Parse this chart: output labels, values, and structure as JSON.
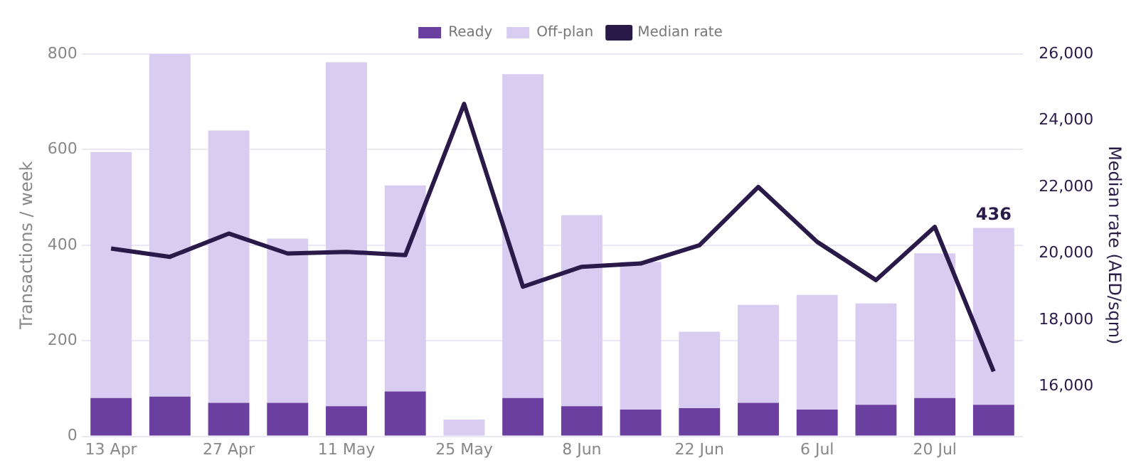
{
  "chart_data": {
    "type": "bar",
    "stacked": true,
    "categories": [
      "13 Apr",
      null,
      "27 Apr",
      null,
      "11 May",
      null,
      "25 May",
      null,
      "8 Jun",
      null,
      "22 Jun",
      null,
      "6 Jul",
      null,
      "20 Jul",
      null
    ],
    "series": [
      {
        "name": "Ready",
        "color": "#6b3fa0",
        "values": [
          80,
          83,
          70,
          70,
          63,
          94,
          0,
          80,
          63,
          56,
          59,
          70,
          56,
          66,
          80,
          66
        ]
      },
      {
        "name": "Off-plan",
        "color": "#d8ccf1",
        "values": [
          515,
          720,
          570,
          344,
          720,
          431,
          35,
          678,
          400,
          309,
          160,
          205,
          240,
          212,
          303,
          370
        ]
      },
      {
        "name": "Median rate",
        "type": "line",
        "axis": "y2",
        "color": "#2a1a4a",
        "values": [
          20150,
          19900,
          20600,
          20000,
          20050,
          19950,
          24500,
          19000,
          19600,
          19700,
          20250,
          22000,
          20350,
          19200,
          20800,
          16450
        ]
      }
    ],
    "totals": [
      null,
      null,
      null,
      null,
      null,
      null,
      null,
      null,
      null,
      null,
      null,
      null,
      null,
      null,
      null,
      "436"
    ],
    "ylabel": "Transactions / week",
    "y2label": "Median rate (AED/sqm)",
    "ylim": [
      0,
      800
    ],
    "yticks": [
      0,
      200,
      400,
      600,
      800
    ],
    "y2lim": [
      14500,
      26000
    ],
    "y2ticks": [
      {
        "value": 16000,
        "label": "16,000"
      },
      {
        "value": 18000,
        "label": "18,000"
      },
      {
        "value": 20000,
        "label": "20,000"
      },
      {
        "value": 22000,
        "label": "22,000"
      },
      {
        "value": 24000,
        "label": "24,000"
      },
      {
        "value": 26000,
        "label": "26,000"
      }
    ],
    "grid": "y",
    "legend": "top",
    "marker": "none"
  }
}
